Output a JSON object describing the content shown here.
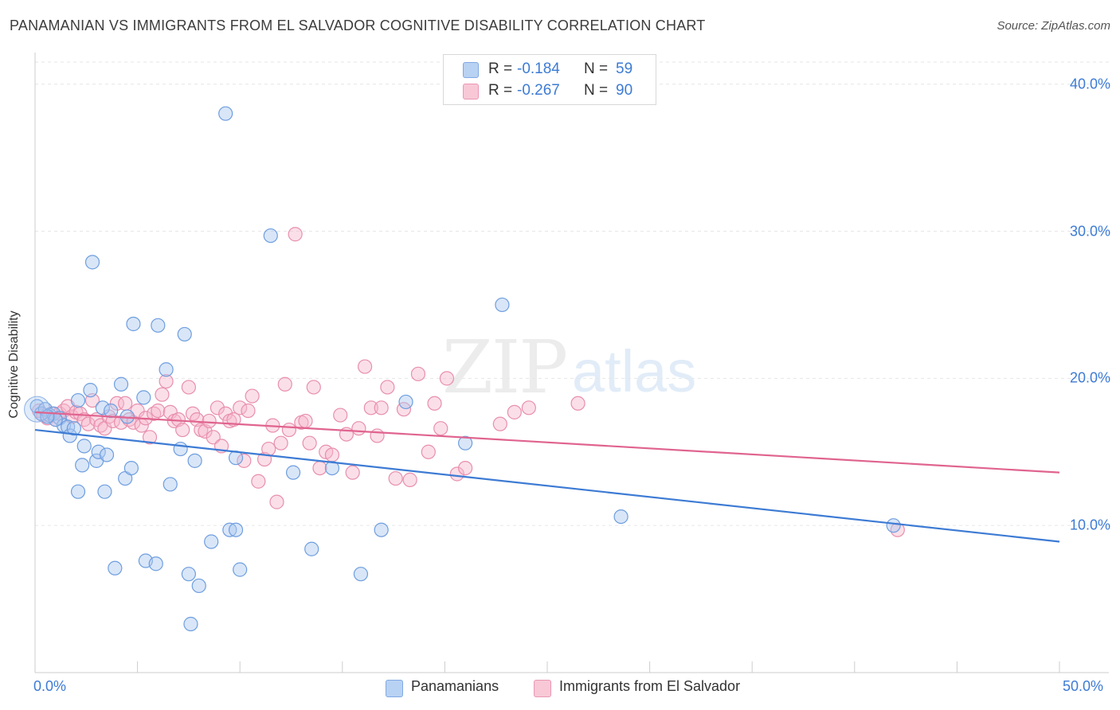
{
  "title": "PANAMANIAN VS IMMIGRANTS FROM EL SALVADOR COGNITIVE DISABILITY CORRELATION CHART",
  "source": "Source: ZipAtlas.com",
  "watermark": {
    "zip": "ZIP",
    "atlas": "atlas"
  },
  "colors": {
    "blue": "#3d7bd4",
    "pink": "#e0648f",
    "blue_fill": "#aac8f0",
    "pink_fill": "#f6b8cc",
    "grid": "#e6e6e6"
  },
  "legend_top": {
    "rows": [
      {
        "r_label": "R =",
        "r_value": "-0.184",
        "n_label": "N =",
        "n_value": "59"
      },
      {
        "r_label": "R =",
        "r_value": "-0.267",
        "n_label": "N =",
        "n_value": "90"
      }
    ]
  },
  "chart_data": {
    "type": "scatter",
    "title": "PANAMANIAN VS IMMIGRANTS FROM EL SALVADOR COGNITIVE DISABILITY CORRELATION CHART",
    "xlabel": "",
    "ylabel": "Cognitive Disability",
    "xlim": [
      0,
      50
    ],
    "ylim": [
      0,
      41.5
    ],
    "x_tick_labels": [
      "0.0%",
      "50.0%"
    ],
    "y_ticks": [
      10,
      20,
      30,
      40
    ],
    "y_tick_labels": [
      "10.0%",
      "20.0%",
      "30.0%",
      "40.0%"
    ],
    "grid": true,
    "legend_position": "bottom",
    "series": [
      {
        "name": "Panamanians",
        "color": "#3d7bd4",
        "r": -0.184,
        "n": 59,
        "trend": {
          "x": [
            0,
            50
          ],
          "y": [
            16.5,
            8.9
          ]
        },
        "points": [
          [
            0.1,
            18.1
          ],
          [
            0.3,
            17.6
          ],
          [
            0.5,
            17.9
          ],
          [
            0.7,
            17.5
          ],
          [
            0.9,
            17.6
          ],
          [
            1.2,
            17.3
          ],
          [
            1.4,
            16.8
          ],
          [
            1.6,
            16.7
          ],
          [
            1.7,
            16.1
          ],
          [
            1.9,
            16.6
          ],
          [
            2.1,
            18.5
          ],
          [
            2.3,
            14.1
          ],
          [
            2.4,
            15.4
          ],
          [
            2.7,
            19.2
          ],
          [
            2.8,
            27.9
          ],
          [
            3.0,
            14.4
          ],
          [
            3.1,
            15.0
          ],
          [
            3.3,
            18.0
          ],
          [
            3.5,
            14.8
          ],
          [
            3.7,
            17.8
          ],
          [
            4.2,
            19.6
          ],
          [
            4.4,
            13.2
          ],
          [
            4.5,
            17.4
          ],
          [
            4.7,
            13.9
          ],
          [
            4.8,
            23.7
          ],
          [
            3.9,
            7.1
          ],
          [
            2.1,
            12.3
          ],
          [
            3.4,
            12.3
          ],
          [
            5.3,
            18.7
          ],
          [
            5.4,
            7.6
          ],
          [
            5.9,
            7.4
          ],
          [
            6.0,
            23.6
          ],
          [
            6.4,
            20.6
          ],
          [
            6.6,
            12.8
          ],
          [
            7.1,
            15.2
          ],
          [
            7.3,
            23.0
          ],
          [
            7.5,
            6.7
          ],
          [
            7.8,
            14.4
          ],
          [
            8.0,
            5.9
          ],
          [
            7.6,
            3.3
          ],
          [
            8.6,
            8.9
          ],
          [
            9.3,
            38.0
          ],
          [
            9.5,
            9.7
          ],
          [
            9.8,
            9.7
          ],
          [
            9.8,
            14.6
          ],
          [
            10.0,
            7.0
          ],
          [
            11.5,
            29.7
          ],
          [
            12.6,
            13.6
          ],
          [
            13.5,
            8.4
          ],
          [
            14.5,
            13.9
          ],
          [
            15.9,
            6.7
          ],
          [
            16.9,
            9.7
          ],
          [
            18.1,
            18.4
          ],
          [
            21.0,
            15.6
          ],
          [
            22.8,
            25.0
          ],
          [
            28.6,
            10.6
          ],
          [
            41.9,
            10.0
          ],
          [
            1.0,
            17.2
          ],
          [
            0.6,
            17.4
          ]
        ]
      },
      {
        "name": "Immigrants from El Salvador",
        "color": "#e0648f",
        "r": -0.267,
        "n": 90,
        "trend": {
          "x": [
            0,
            50
          ],
          "y": [
            17.7,
            13.6
          ]
        },
        "points": [
          [
            0.2,
            17.8
          ],
          [
            0.4,
            17.5
          ],
          [
            0.6,
            17.3
          ],
          [
            0.8,
            17.6
          ],
          [
            1.0,
            17.2
          ],
          [
            1.2,
            17.6
          ],
          [
            1.4,
            17.8
          ],
          [
            1.6,
            18.1
          ],
          [
            1.8,
            17.4
          ],
          [
            2.0,
            17.7
          ],
          [
            2.2,
            17.6
          ],
          [
            2.4,
            17.2
          ],
          [
            2.6,
            16.9
          ],
          [
            2.8,
            18.5
          ],
          [
            3.0,
            17.2
          ],
          [
            3.2,
            16.8
          ],
          [
            3.4,
            16.6
          ],
          [
            3.6,
            17.4
          ],
          [
            3.8,
            17.1
          ],
          [
            4.0,
            18.3
          ],
          [
            4.2,
            17.0
          ],
          [
            4.4,
            18.3
          ],
          [
            4.6,
            17.2
          ],
          [
            4.8,
            17.0
          ],
          [
            5.0,
            17.8
          ],
          [
            5.2,
            16.8
          ],
          [
            5.4,
            17.3
          ],
          [
            5.6,
            16.0
          ],
          [
            5.8,
            17.6
          ],
          [
            6.0,
            17.8
          ],
          [
            6.2,
            18.9
          ],
          [
            6.4,
            19.8
          ],
          [
            6.6,
            17.7
          ],
          [
            6.8,
            17.1
          ],
          [
            7.0,
            17.2
          ],
          [
            7.2,
            16.5
          ],
          [
            7.5,
            19.4
          ],
          [
            7.7,
            17.6
          ],
          [
            7.9,
            17.2
          ],
          [
            8.1,
            16.5
          ],
          [
            8.3,
            16.4
          ],
          [
            8.5,
            17.1
          ],
          [
            8.7,
            16.0
          ],
          [
            8.9,
            18.0
          ],
          [
            9.1,
            15.4
          ],
          [
            9.3,
            17.6
          ],
          [
            9.5,
            17.1
          ],
          [
            9.7,
            17.2
          ],
          [
            10.0,
            18.0
          ],
          [
            10.2,
            14.4
          ],
          [
            10.4,
            17.8
          ],
          [
            10.6,
            18.8
          ],
          [
            10.9,
            13.0
          ],
          [
            11.2,
            14.5
          ],
          [
            11.4,
            15.2
          ],
          [
            11.6,
            16.8
          ],
          [
            11.8,
            11.6
          ],
          [
            12.0,
            15.6
          ],
          [
            12.2,
            19.6
          ],
          [
            12.4,
            16.5
          ],
          [
            12.7,
            29.8
          ],
          [
            13.0,
            17.0
          ],
          [
            13.2,
            17.1
          ],
          [
            13.4,
            15.6
          ],
          [
            13.6,
            19.4
          ],
          [
            13.9,
            13.9
          ],
          [
            14.2,
            15.0
          ],
          [
            14.5,
            14.8
          ],
          [
            14.9,
            17.5
          ],
          [
            15.2,
            16.2
          ],
          [
            15.5,
            13.6
          ],
          [
            15.8,
            16.6
          ],
          [
            16.1,
            20.8
          ],
          [
            16.4,
            18.0
          ],
          [
            16.7,
            16.1
          ],
          [
            16.9,
            18.0
          ],
          [
            17.2,
            19.4
          ],
          [
            17.6,
            13.2
          ],
          [
            18.0,
            17.9
          ],
          [
            18.3,
            13.1
          ],
          [
            18.7,
            20.3
          ],
          [
            19.2,
            15.0
          ],
          [
            19.5,
            18.3
          ],
          [
            19.8,
            16.6
          ],
          [
            20.1,
            20.0
          ],
          [
            20.6,
            13.5
          ],
          [
            21.0,
            13.9
          ],
          [
            22.7,
            16.9
          ],
          [
            23.4,
            17.7
          ],
          [
            24.1,
            18.0
          ],
          [
            26.5,
            18.3
          ],
          [
            42.1,
            9.7
          ]
        ]
      }
    ]
  },
  "legend_bottom": {
    "items": [
      {
        "label": "Panamanians"
      },
      {
        "label": "Immigrants from El Salvador"
      }
    ]
  }
}
